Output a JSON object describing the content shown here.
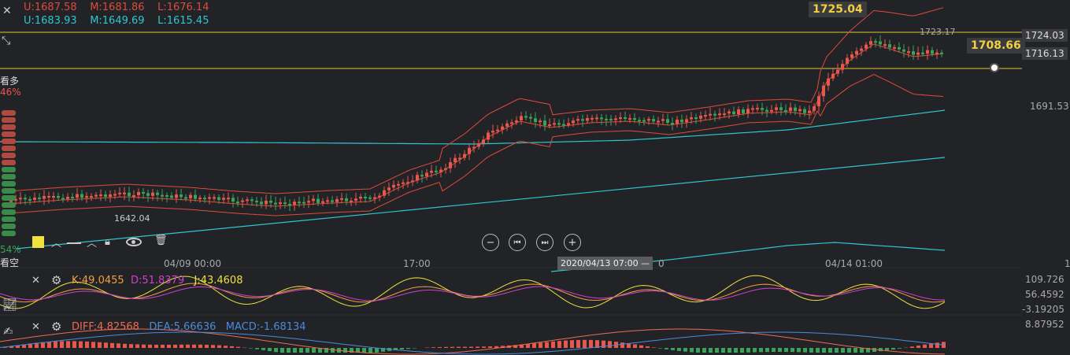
{
  "boll": {
    "row1": {
      "u": "U:1687.58",
      "m": "M:1681.86",
      "l": "L:1676.14"
    },
    "row2": {
      "u": "U:1683.93",
      "m": "M:1649.69",
      "l": "L:1615.45"
    }
  },
  "price_labels": {
    "high_callout": "1725.04",
    "high_small": "1723.17",
    "current": "1708.66",
    "axis_top": "1724.03",
    "axis_second": "1716.13",
    "axis_mid": "1691.53",
    "low_label": "1642.04"
  },
  "sentiment": {
    "bull_label": "看多",
    "bull_pct": "46%",
    "bear_label": "看空",
    "bear_pct": "54%"
  },
  "time_axis": {
    "t1": "04/09 00:00",
    "t2": "17:00",
    "t3": "04/14 01:00",
    "cursor": "2020/04/13 07:00 —",
    "cursor_tail": "0",
    "right_stub": "1"
  },
  "kdj": {
    "k": "K:49.0455",
    "d": "D:51.8379",
    "j": "J:43.4608",
    "axis": [
      "109.726",
      "56.4592",
      "-3.19205"
    ]
  },
  "macd": {
    "diff": "DIFF:4.82568",
    "dea": "DEA:5.66636",
    "macd": "MACD:-1.68134",
    "axis": "8.87952"
  },
  "colors": {
    "up": "#e8574c",
    "down": "#3aa35a",
    "boll": "#e04a3a",
    "ma": "#2ec7d0",
    "yellow_line": "#d9c43a",
    "k": "#f0a040",
    "d": "#d040d0",
    "j": "#f0e040",
    "diff": "#f06a50",
    "dea": "#4a8adf"
  },
  "icons": [
    "close-icon",
    "collapse-icon",
    "settings-icon",
    "trend-icon",
    "draw-icon",
    "lock-icon",
    "eye-icon",
    "trash-icon",
    "zoom-out-icon",
    "prev-icon",
    "next-icon",
    "zoom-in-icon"
  ]
}
